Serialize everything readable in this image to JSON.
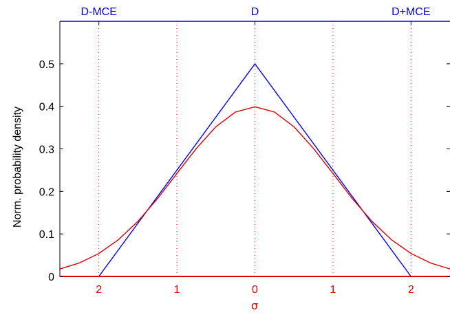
{
  "colors": {
    "triangle": "#0000ff",
    "gaussian": "#dd0000",
    "top_axis": "#0000cc",
    "bottom_axis": "#dd0000",
    "grid": "#dd0000"
  },
  "chart_data": {
    "type": "line",
    "xlabel": "σ",
    "ylabel": "Norm. probability density",
    "xlim": [
      -2.5,
      2.5
    ],
    "ylim": [
      0,
      0.6
    ],
    "grid": "vertical dotted lines at x = -2, -1, 0, 1, 2",
    "y_ticks": [
      {
        "value": 0,
        "label": "0"
      },
      {
        "value": 0.1,
        "label": "0.1"
      },
      {
        "value": 0.2,
        "label": "0.2"
      },
      {
        "value": 0.3,
        "label": "0.3"
      },
      {
        "value": 0.4,
        "label": "0.4"
      },
      {
        "value": 0.5,
        "label": "0.5"
      }
    ],
    "x_ticks": [
      {
        "value": -2,
        "label": "2"
      },
      {
        "value": -1,
        "label": "1"
      },
      {
        "value": 0,
        "label": "0"
      },
      {
        "value": 1,
        "label": "1"
      },
      {
        "value": 2,
        "label": "2"
      }
    ],
    "top_ticks": [
      {
        "value": -2,
        "label": "D-MCE"
      },
      {
        "value": 0,
        "label": "D"
      },
      {
        "value": 2,
        "label": "D+MCE"
      }
    ],
    "series": [
      {
        "color": "#0000ff",
        "x": [
          -2.5,
          -2,
          0,
          2,
          2.5
        ],
        "y": [
          0,
          0,
          0.5,
          0,
          0
        ]
      },
      {
        "color": "#dd0000",
        "x": [
          -2.5,
          -2.25,
          -2,
          -1.75,
          -1.5,
          -1.25,
          -1,
          -0.75,
          -0.5,
          -0.25,
          0,
          0.25,
          0.5,
          0.75,
          1,
          1.25,
          1.5,
          1.75,
          2,
          2.25,
          2.5
        ],
        "y": [
          0.0175,
          0.0317,
          0.054,
          0.0863,
          0.1295,
          0.1826,
          0.242,
          0.3011,
          0.3521,
          0.3867,
          0.3989,
          0.3867,
          0.3521,
          0.3011,
          0.242,
          0.1826,
          0.1295,
          0.0863,
          0.054,
          0.0317,
          0.0175
        ]
      }
    ]
  }
}
